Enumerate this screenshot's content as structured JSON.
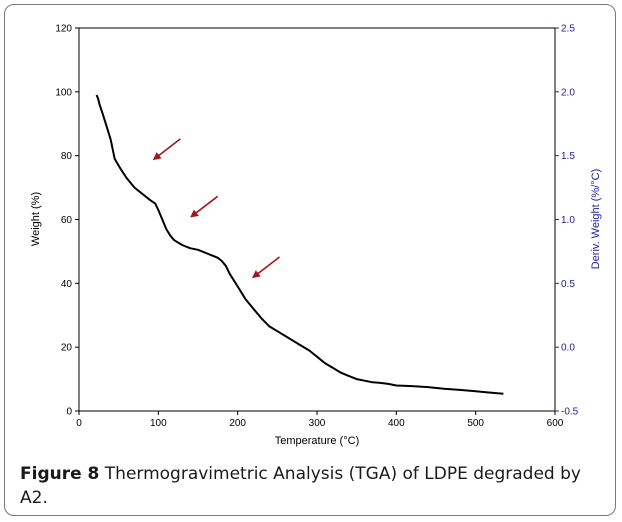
{
  "caption": {
    "label": "Figure 8",
    "text": "Thermogravimetric Analysis (TGA) of LDPE degraded by A2."
  },
  "chart_data": {
    "type": "line",
    "xlabel": "Temperature (°C)",
    "ylabel": "Weight (%)",
    "y2label": "Deriv. Weight (%/°C)",
    "xlim": [
      0,
      600
    ],
    "ylim": [
      0,
      120
    ],
    "y2lim": [
      -0.5,
      2.5
    ],
    "xticks": [
      "0",
      "100",
      "200",
      "300",
      "400",
      "500",
      "600"
    ],
    "yticks": [
      "0",
      "20",
      "40",
      "60",
      "80",
      "100",
      "120"
    ],
    "y2ticks": [
      "-0.5",
      "0.0",
      "0.5",
      "1.0",
      "1.5",
      "2.0",
      "2.5"
    ],
    "grid": false,
    "colors": {
      "curve": "#000000",
      "arrows": "#a0181c",
      "right_axis": "#1f1f9c"
    },
    "series": [
      {
        "x": [
          22,
          24,
          26,
          30,
          35,
          40,
          45,
          52,
          60,
          70,
          80,
          90,
          96,
          100,
          105,
          110,
          115,
          120,
          130,
          140,
          150,
          160,
          170,
          175,
          180,
          185,
          190,
          200,
          210,
          220,
          230,
          240,
          250,
          260,
          270,
          280,
          290,
          300,
          310,
          320,
          330,
          340,
          350,
          360,
          370,
          380,
          390,
          400,
          420,
          440,
          460,
          480,
          500,
          520,
          535
        ],
        "y": [
          99,
          98,
          96,
          93,
          89,
          85,
          79,
          76,
          73,
          70,
          68,
          66,
          65,
          63,
          60,
          57,
          55,
          53.5,
          52,
          51,
          50.5,
          49.5,
          48.5,
          48,
          47,
          45.5,
          43,
          39,
          35,
          32,
          29,
          26.5,
          25,
          23.5,
          22,
          20.5,
          19,
          17,
          15,
          13.5,
          12,
          11,
          10,
          9.5,
          9,
          8.8,
          8.5,
          8,
          7.8,
          7.5,
          7,
          6.6,
          6.2,
          5.7,
          5.4
        ]
      }
    ],
    "annotations": [
      {
        "type": "arrow",
        "x": 95,
        "y": 79
      },
      {
        "type": "arrow",
        "x": 142,
        "y": 61
      },
      {
        "type": "arrow",
        "x": 220,
        "y": 42
      }
    ]
  }
}
